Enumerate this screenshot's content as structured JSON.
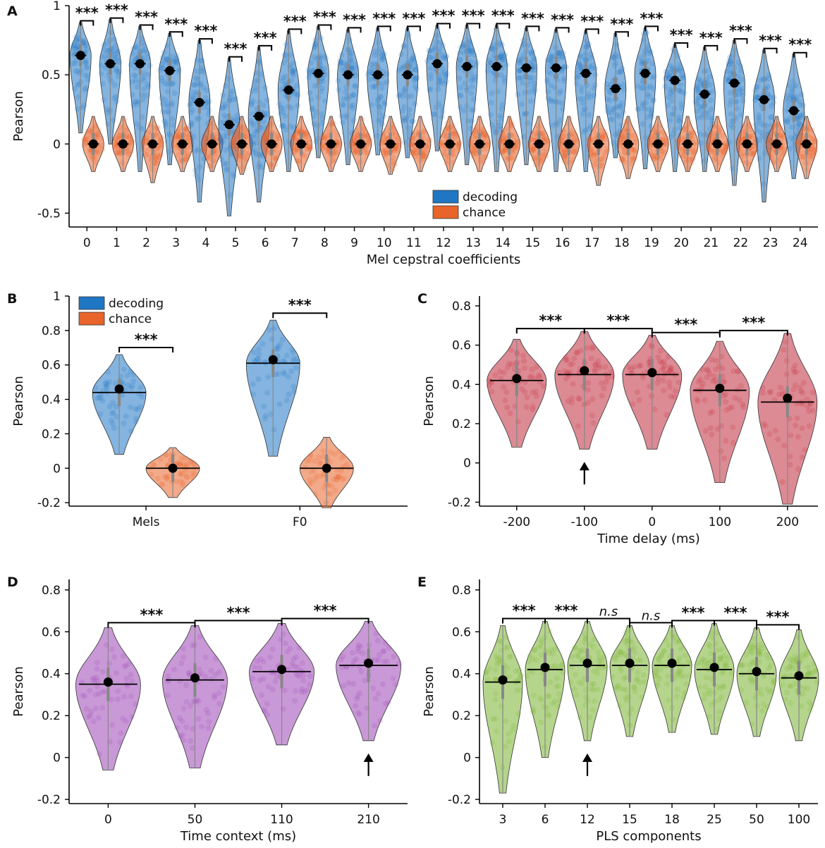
{
  "colors": {
    "decoding": "#1f77c4",
    "chance": "#e8642a",
    "time_delay": "#c0293a",
    "time_context": "#9b45b5",
    "pls": "#79b22f",
    "axis": "#000000"
  },
  "chart_data": [
    {
      "id": "A",
      "type": "violin",
      "panel_label": "A",
      "xlabel": "Mel cepstral coefficients",
      "ylabel": "Pearson",
      "ylim": [
        -0.6,
        1.0
      ],
      "yticks": [
        -0.5,
        0,
        0.5,
        1
      ],
      "ytick_labels": [
        "-0.5",
        "0",
        "0.5",
        "1"
      ],
      "categories": [
        "0",
        "1",
        "2",
        "3",
        "4",
        "5",
        "6",
        "7",
        "8",
        "9",
        "10",
        "11",
        "12",
        "13",
        "14",
        "15",
        "16",
        "17",
        "18",
        "19",
        "20",
        "21",
        "22",
        "23",
        "24"
      ],
      "legend": [
        "decoding",
        "chance"
      ],
      "legend_position": "bottom-center",
      "sig_label": "***",
      "series": [
        {
          "name": "decoding",
          "color_key": "decoding",
          "medians": [
            0.64,
            0.58,
            0.58,
            0.53,
            0.3,
            0.14,
            0.2,
            0.39,
            0.51,
            0.5,
            0.5,
            0.5,
            0.58,
            0.56,
            0.56,
            0.55,
            0.55,
            0.51,
            0.4,
            0.51,
            0.46,
            0.36,
            0.44,
            0.32,
            0.24
          ],
          "mins": [
            0.08,
            0.0,
            -0.2,
            -0.15,
            -0.42,
            -0.52,
            -0.42,
            -0.2,
            -0.1,
            -0.15,
            -0.08,
            -0.1,
            -0.05,
            -0.15,
            -0.2,
            -0.15,
            -0.2,
            -0.2,
            -0.1,
            -0.18,
            -0.2,
            -0.2,
            -0.3,
            -0.42,
            -0.25
          ],
          "maxs": [
            0.88,
            0.9,
            0.85,
            0.8,
            0.75,
            0.62,
            0.7,
            0.82,
            0.85,
            0.83,
            0.84,
            0.84,
            0.86,
            0.86,
            0.86,
            0.84,
            0.83,
            0.82,
            0.8,
            0.84,
            0.72,
            0.7,
            0.75,
            0.68,
            0.65
          ]
        },
        {
          "name": "chance",
          "color_key": "chance",
          "medians": [
            0,
            0,
            0,
            0,
            0,
            0,
            0,
            0,
            0,
            0,
            0,
            0,
            0,
            0,
            0,
            0,
            0,
            0,
            0,
            0,
            0,
            0,
            0,
            0,
            0
          ],
          "mins": [
            -0.2,
            -0.2,
            -0.28,
            -0.2,
            -0.2,
            -0.22,
            -0.2,
            -0.2,
            -0.2,
            -0.2,
            -0.22,
            -0.2,
            -0.2,
            -0.2,
            -0.2,
            -0.2,
            -0.2,
            -0.3,
            -0.25,
            -0.2,
            -0.2,
            -0.2,
            -0.2,
            -0.2,
            -0.25
          ],
          "maxs": [
            0.2,
            0.2,
            0.2,
            0.2,
            0.2,
            0.2,
            0.2,
            0.2,
            0.2,
            0.2,
            0.2,
            0.2,
            0.2,
            0.2,
            0.2,
            0.2,
            0.2,
            0.2,
            0.2,
            0.2,
            0.2,
            0.2,
            0.2,
            0.2,
            0.2
          ]
        }
      ]
    },
    {
      "id": "B",
      "type": "violin",
      "panel_label": "B",
      "xlabel": "",
      "ylabel": "Pearson",
      "ylim": [
        -0.22,
        1.0
      ],
      "yticks": [
        -0.2,
        0,
        0.2,
        0.4,
        0.6,
        0.8,
        1
      ],
      "ytick_labels": [
        "-0.2",
        "0",
        "0.2",
        "0.4",
        "0.6",
        "0.8",
        "1"
      ],
      "categories": [
        "Mels",
        "F0"
      ],
      "legend": [
        "decoding",
        "chance"
      ],
      "legend_position": "top-left",
      "sig_label": "***",
      "series": [
        {
          "name": "decoding",
          "color_key": "decoding",
          "medians": [
            0.44,
            0.61
          ],
          "means": [
            0.46,
            0.63
          ],
          "mins": [
            0.08,
            0.07
          ],
          "maxs": [
            0.66,
            0.86
          ]
        },
        {
          "name": "chance",
          "color_key": "chance",
          "medians": [
            0.0,
            0.0
          ],
          "means": [
            0.0,
            0.0
          ],
          "mins": [
            -0.17,
            -0.23
          ],
          "maxs": [
            0.12,
            0.18
          ]
        }
      ]
    },
    {
      "id": "C",
      "type": "violin",
      "panel_label": "C",
      "xlabel": "Time delay (ms)",
      "ylabel": "Pearson",
      "ylim": [
        -0.22,
        0.85
      ],
      "yticks": [
        -0.2,
        0,
        0.2,
        0.4,
        0.6,
        0.8
      ],
      "ytick_labels": [
        "-0.2",
        "0",
        "0.2",
        "0.4",
        "0.6",
        "0.8"
      ],
      "categories": [
        "-200",
        "-100",
        "0",
        "100",
        "200"
      ],
      "color_key": "time_delay",
      "medians": [
        0.42,
        0.45,
        0.45,
        0.37,
        0.31
      ],
      "means": [
        0.43,
        0.47,
        0.46,
        0.38,
        0.33
      ],
      "mins": [
        0.08,
        0.07,
        0.07,
        -0.1,
        -0.21
      ],
      "maxs": [
        0.63,
        0.67,
        0.65,
        0.62,
        0.66
      ],
      "sig_pairs": [
        [
          0,
          1,
          "***"
        ],
        [
          1,
          2,
          "***"
        ],
        [
          2,
          3,
          "***"
        ],
        [
          3,
          4,
          "***"
        ]
      ],
      "arrow_index": 1
    },
    {
      "id": "D",
      "type": "violin",
      "panel_label": "D",
      "xlabel": "Time context (ms)",
      "ylabel": "Pearson",
      "ylim": [
        -0.22,
        0.85
      ],
      "yticks": [
        -0.2,
        0,
        0.2,
        0.4,
        0.6,
        0.8
      ],
      "ytick_labels": [
        "-0.2",
        "0",
        "0.2",
        "0.4",
        "0.6",
        "0.8"
      ],
      "categories": [
        "0",
        "50",
        "110",
        "210"
      ],
      "color_key": "time_context",
      "medians": [
        0.35,
        0.37,
        0.41,
        0.44
      ],
      "means": [
        0.36,
        0.38,
        0.42,
        0.45
      ],
      "mins": [
        -0.06,
        -0.05,
        0.06,
        0.08
      ],
      "maxs": [
        0.62,
        0.63,
        0.64,
        0.65
      ],
      "sig_pairs": [
        [
          0,
          1,
          "***"
        ],
        [
          1,
          2,
          "***"
        ],
        [
          2,
          3,
          "***"
        ]
      ],
      "arrow_index": 3
    },
    {
      "id": "E",
      "type": "violin",
      "panel_label": "E",
      "xlabel": "PLS components",
      "ylabel": "Pearson",
      "ylim": [
        -0.22,
        0.85
      ],
      "yticks": [
        -0.2,
        0,
        0.2,
        0.4,
        0.6,
        0.8
      ],
      "ytick_labels": [
        "-0.2",
        "0",
        "0.2",
        "0.4",
        "0.6",
        "0.8"
      ],
      "categories": [
        "3",
        "6",
        "12",
        "15",
        "18",
        "25",
        "50",
        "100"
      ],
      "color_key": "pls",
      "medians": [
        0.36,
        0.42,
        0.44,
        0.44,
        0.44,
        0.42,
        0.4,
        0.38
      ],
      "means": [
        0.37,
        0.43,
        0.45,
        0.45,
        0.45,
        0.43,
        0.41,
        0.39
      ],
      "mins": [
        -0.17,
        0.0,
        0.08,
        0.1,
        0.12,
        0.11,
        0.1,
        0.08
      ],
      "maxs": [
        0.63,
        0.65,
        0.65,
        0.63,
        0.63,
        0.64,
        0.62,
        0.61
      ],
      "sig_pairs": [
        [
          0,
          1,
          "***"
        ],
        [
          1,
          2,
          "***"
        ],
        [
          2,
          3,
          "n.s"
        ],
        [
          3,
          4,
          "n.s"
        ],
        [
          4,
          5,
          "***"
        ],
        [
          5,
          6,
          "***"
        ],
        [
          6,
          7,
          "***"
        ]
      ],
      "arrow_index": 2
    }
  ]
}
